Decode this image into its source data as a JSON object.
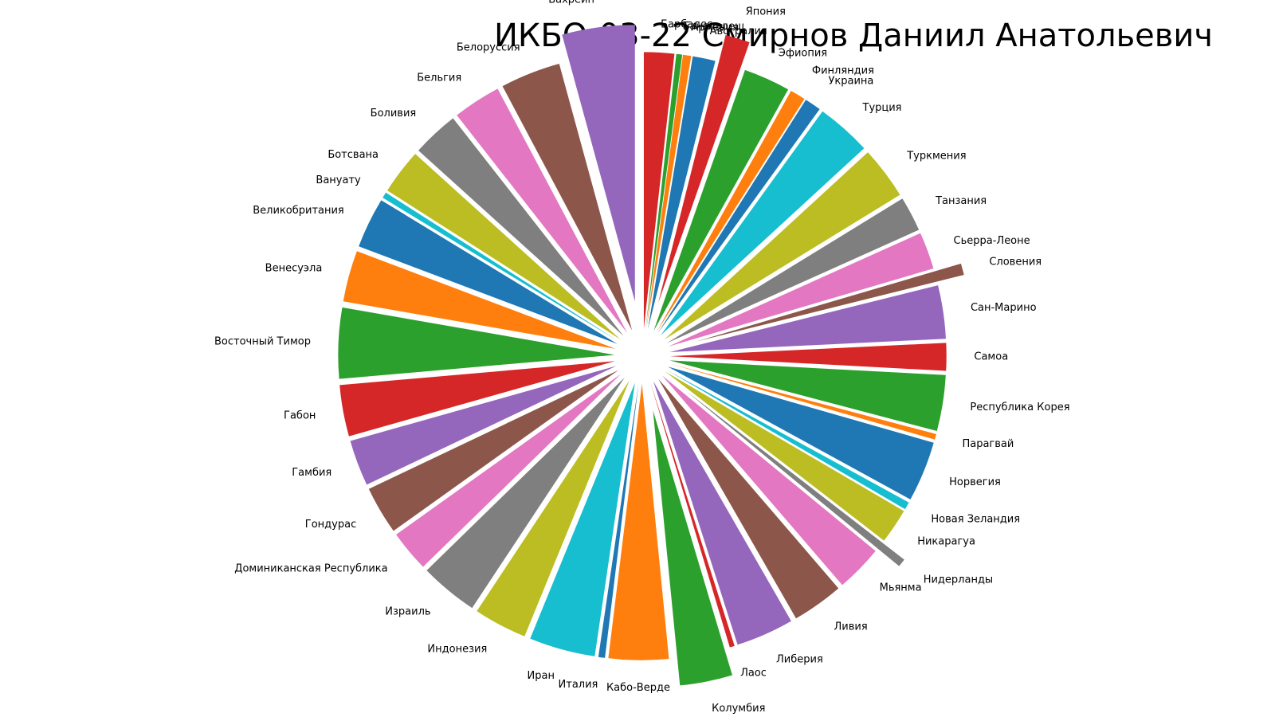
{
  "chart_data": {
    "type": "pie",
    "title": "ИКБО-03-22 Смирнов Даниил Анатольевич",
    "categories": [
      "Бахрейн",
      "Белоруссия",
      "Бельгия",
      "Боливия",
      "Ботсвана",
      "Вануату",
      "Великобритания",
      "Венесуэла",
      "Восточный Тимор",
      "Габон",
      "Гамбия",
      "Гондурас",
      "Доминиканская Республика",
      "Израиль",
      "Индонезия",
      "Иран",
      "Италия",
      "Кабо-Верде",
      "Колумбия",
      "Лаос",
      "Либерия",
      "Ливия",
      "Мьянма",
      "Нидерланды",
      "Никарагуа",
      "Новая Зеландия",
      "Норвегия",
      "Парагвай",
      "Республика Корея",
      "Самоа",
      "Сан-Марино",
      "Словения",
      "Сьерра-Леоне",
      "Танзания",
      "Туркмения",
      "Турция",
      "Украина",
      "Финляндия",
      "Эфиопия",
      "Япония",
      "Австралия",
      "Армения",
      "Бангладеш",
      "Барбадос"
    ],
    "values": [
      22.1,
      18.3,
      14.6,
      14.2,
      13.8,
      1.8,
      15.4,
      15.6,
      21.5,
      15.6,
      14.0,
      14.6,
      12.6,
      17.7,
      16.2,
      20.1,
      2.0,
      18.2,
      16.0,
      1.5,
      17.6,
      15.6,
      14.3,
      2.5,
      10.7,
      2.3,
      18.4,
      1.7,
      17.0,
      8.4,
      16.2,
      3.5,
      11.3,
      10.6,
      16.0,
      16.7,
      5.0,
      4.7,
      14.2,
      7.5,
      6.9,
      2.5,
      1.8,
      9.2
    ],
    "explode": [
      0.2,
      0.1,
      0.1,
      0.1,
      0.1,
      0.1,
      0.1,
      0.1,
      0.1,
      0.1,
      0.1,
      0.1,
      0.1,
      0.1,
      0.1,
      0.1,
      0.1,
      0.1,
      0.2,
      0.1,
      0.1,
      0.1,
      0.1,
      0.2,
      0.1,
      0.1,
      0.1,
      0.1,
      0.1,
      0.1,
      0.1,
      0.2,
      0.1,
      0.1,
      0.1,
      0.1,
      0.1,
      0.1,
      0.1,
      0.2,
      0.1,
      0.1,
      0.1,
      0.1
    ],
    "colors": [
      "#9467bd",
      "#8c564b",
      "#e377c2",
      "#7f7f7f",
      "#bcbd22",
      "#17becf",
      "#1f77b4",
      "#ff7f0e",
      "#2ca02c",
      "#d62728",
      "#9467bd",
      "#8c564b",
      "#e377c2",
      "#7f7f7f",
      "#bcbd22",
      "#17becf",
      "#1f77b4",
      "#ff7f0e",
      "#2ca02c",
      "#d62728",
      "#9467bd",
      "#8c564b",
      "#e377c2",
      "#7f7f7f",
      "#bcbd22",
      "#17becf",
      "#1f77b4",
      "#ff7f0e",
      "#2ca02c",
      "#d62728",
      "#9467bd",
      "#8c564b",
      "#e377c2",
      "#7f7f7f",
      "#bcbd22",
      "#17becf",
      "#1f77b4",
      "#ff7f0e",
      "#2ca02c",
      "#d62728",
      "#1f77b4",
      "#ff7f0e",
      "#2ca02c",
      "#d62728"
    ]
  }
}
